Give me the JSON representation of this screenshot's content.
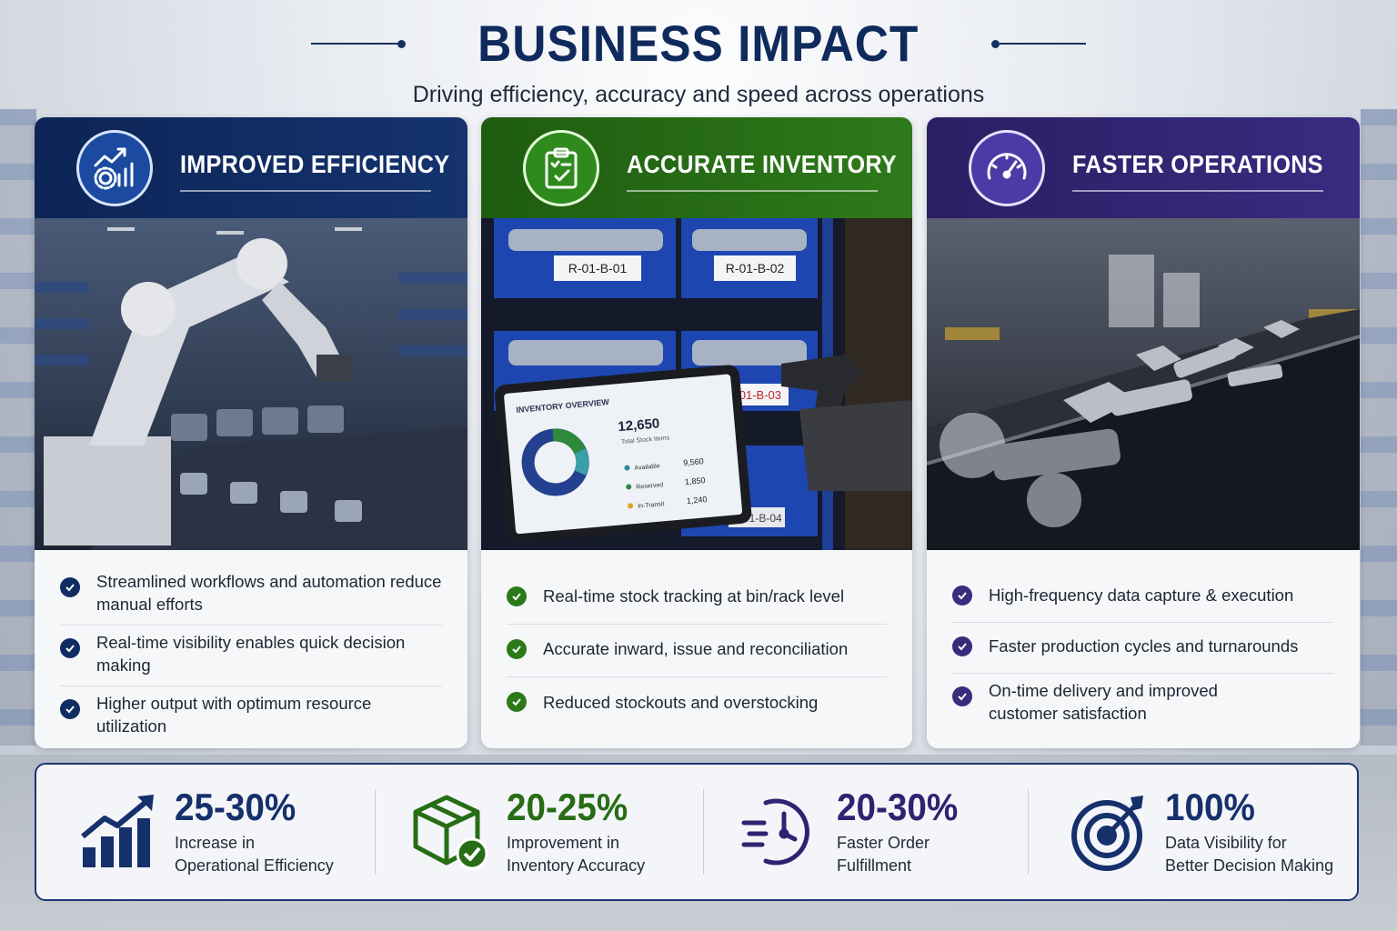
{
  "header": {
    "title": "BUSINESS IMPACT",
    "subtitle": "Driving efficiency, accuracy and speed across operations"
  },
  "colors": {
    "navy": "#0c2556",
    "green": "#2e7a1a",
    "purple": "#3a2b80"
  },
  "cards": [
    {
      "title": "IMPROVED EFFICIENCY",
      "icon": "chart-gear-icon",
      "bullets": [
        "Streamlined workflows and automation reduce manual efforts",
        "Real-time visibility enables quick decision making",
        "Higher output with optimum resource utilization"
      ]
    },
    {
      "title": "ACCURATE INVENTORY",
      "icon": "clipboard-check-icon",
      "bin_labels": [
        "R-01-B-01",
        "R-01-B-02",
        "R-01-B-03",
        "R-01-B-04"
      ],
      "tablet": {
        "heading": "INVENTORY OVERVIEW",
        "total_value": "12,650",
        "total_label": "Total Stock Items",
        "rows": [
          {
            "label": "Available",
            "value": "9,560"
          },
          {
            "label": "Reserved",
            "value": "1,850"
          },
          {
            "label": "In-Transit",
            "value": "1,240"
          }
        ]
      },
      "bullets": [
        "Real-time stock tracking at bin/rack level",
        "Accurate inward, issue and reconciliation",
        "Reduced stockouts and overstocking"
      ]
    },
    {
      "title": "FASTER OPERATIONS",
      "icon": "speedometer-icon",
      "bullets": [
        "High-frequency data capture & execution",
        "Faster production cycles and turnarounds",
        "On-time delivery and improved customer satisfaction"
      ]
    }
  ],
  "stats": [
    {
      "value": "25-30%",
      "label_line1": "Increase in",
      "label_line2": "Operational Efficiency",
      "icon": "bar-chart-up-icon"
    },
    {
      "value": "20-25%",
      "label_line1": "Improvement in",
      "label_line2": "Inventory Accuracy",
      "icon": "box-check-icon"
    },
    {
      "value": "20-30%",
      "label_line1": "Faster Order",
      "label_line2": "Fulfillment",
      "icon": "fast-clock-icon"
    },
    {
      "value": "100%",
      "label_line1": "Data Visibility for",
      "label_line2": "Better Decision Making",
      "icon": "target-icon"
    }
  ]
}
